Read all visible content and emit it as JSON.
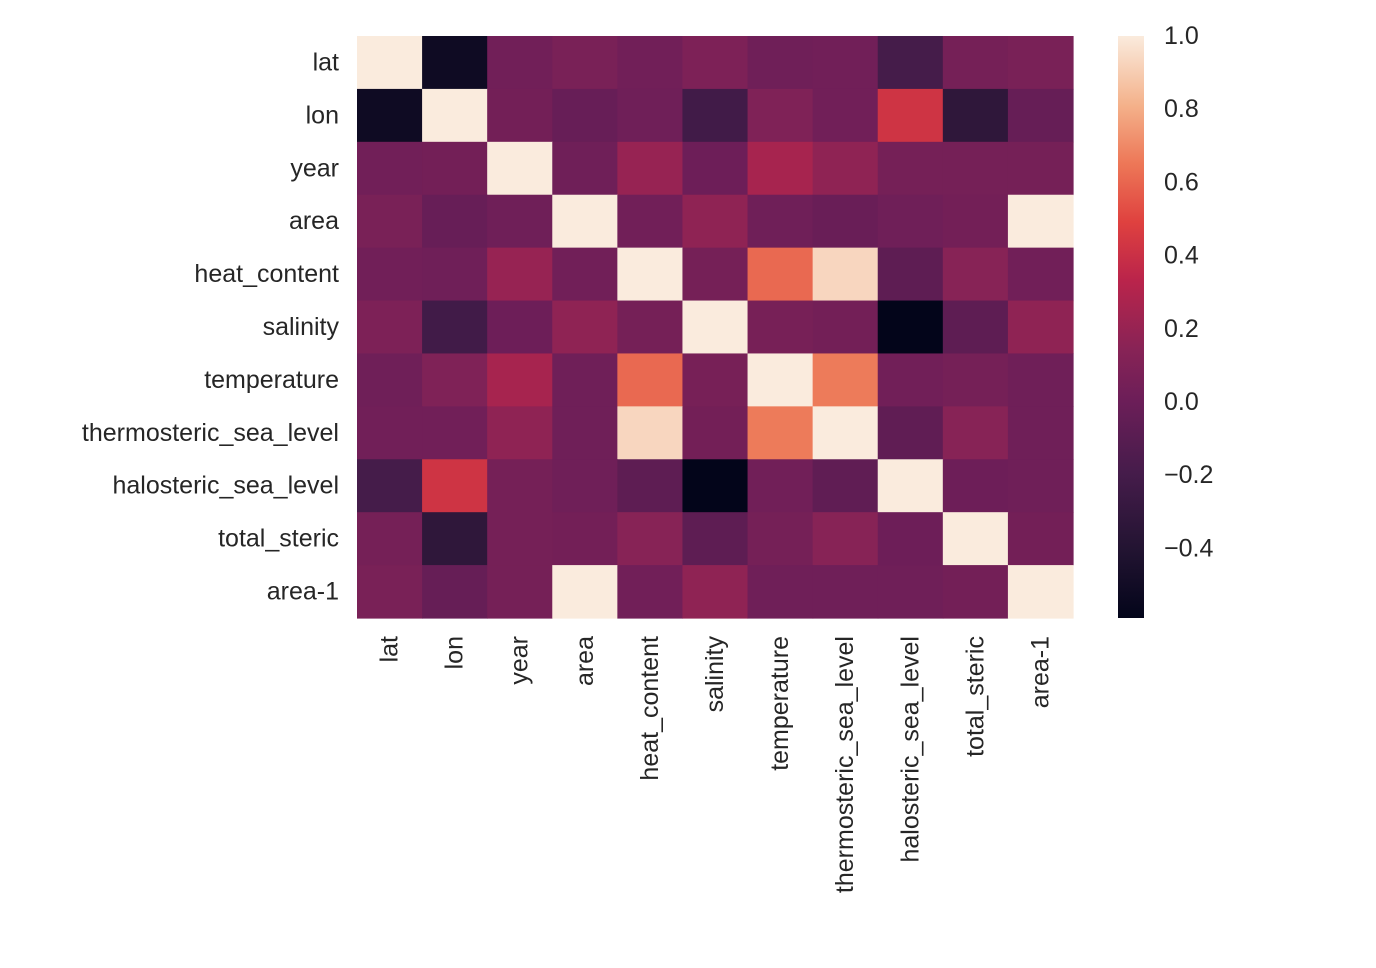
{
  "chart_data": {
    "type": "heatmap",
    "title": "",
    "xlabel": "",
    "ylabel": "",
    "row_labels": [
      "lat",
      "lon",
      "year",
      "area",
      "heat_content",
      "salinity",
      "temperature",
      "thermosteric_sea_level",
      "halosteric_sea_level",
      "total_steric",
      "area-1"
    ],
    "col_labels": [
      "lat",
      "lon",
      "year",
      "area",
      "heat_content",
      "salinity",
      "temperature",
      "thermosteric_sea_level",
      "halosteric_sea_level",
      "total_steric",
      "area-1"
    ],
    "values": [
      [
        1.0,
        -0.52,
        0.03,
        0.07,
        0.03,
        0.09,
        0.02,
        0.03,
        -0.2,
        0.05,
        0.07
      ],
      [
        -0.52,
        1.0,
        0.04,
        -0.02,
        0.02,
        -0.22,
        0.1,
        0.03,
        0.42,
        -0.33,
        -0.03
      ],
      [
        0.03,
        0.04,
        1.0,
        0.02,
        0.2,
        0.01,
        0.26,
        0.17,
        0.05,
        0.05,
        0.05
      ],
      [
        0.07,
        -0.02,
        0.02,
        1.0,
        0.03,
        0.17,
        0.02,
        -0.01,
        0.02,
        0.04,
        1.0
      ],
      [
        0.03,
        0.02,
        0.2,
        0.03,
        1.0,
        0.05,
        0.61,
        0.93,
        -0.07,
        0.14,
        0.03
      ],
      [
        0.09,
        -0.22,
        0.01,
        0.17,
        0.05,
        1.0,
        0.06,
        0.04,
        -0.59,
        -0.07,
        0.17
      ],
      [
        0.02,
        0.1,
        0.26,
        0.02,
        0.61,
        0.06,
        1.0,
        0.66,
        0.03,
        0.05,
        0.02
      ],
      [
        0.03,
        0.03,
        0.17,
        0.02,
        0.93,
        0.04,
        0.66,
        1.0,
        -0.06,
        0.14,
        0.02
      ],
      [
        -0.2,
        0.42,
        0.05,
        0.02,
        -0.07,
        -0.59,
        0.03,
        -0.06,
        1.0,
        0.01,
        0.02
      ],
      [
        0.05,
        -0.33,
        0.05,
        0.04,
        0.14,
        -0.07,
        0.05,
        0.14,
        0.01,
        1.0,
        0.04
      ],
      [
        0.07,
        -0.03,
        0.05,
        1.0,
        0.03,
        0.17,
        0.02,
        0.02,
        0.02,
        0.04,
        1.0
      ]
    ],
    "colormap": "rocket",
    "vmin": -0.59,
    "vmax": 1.0,
    "colorbar_ticks": [
      "1.0",
      "0.8",
      "0.6",
      "0.4",
      "0.2",
      "0.0",
      "−0.2",
      "−0.4"
    ],
    "colorbar_tick_values": [
      1.0,
      0.8,
      0.6,
      0.4,
      0.2,
      0.0,
      -0.2,
      -0.4
    ],
    "colorbar_location": "right",
    "grid": false
  }
}
